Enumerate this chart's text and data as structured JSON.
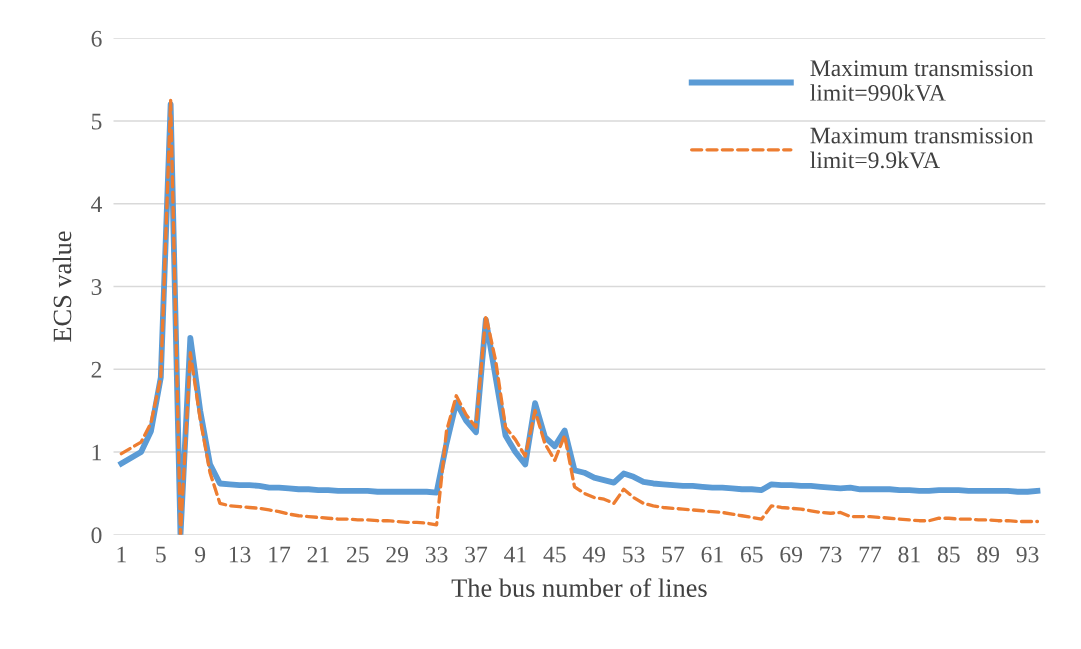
{
  "chart_data": {
    "type": "line",
    "xlabel": "The bus number of lines",
    "ylabel": "ECS value",
    "categories": [
      "1",
      null,
      null,
      null,
      "5",
      null,
      null,
      null,
      "9",
      null,
      null,
      null,
      "13",
      null,
      null,
      null,
      "17",
      null,
      null,
      null,
      "21",
      null,
      null,
      null,
      "25",
      null,
      null,
      null,
      "29",
      null,
      null,
      null,
      "33",
      null,
      null,
      null,
      "37",
      null,
      null,
      null,
      "41",
      null,
      null,
      null,
      "45",
      null,
      null,
      null,
      "49",
      null,
      null,
      null,
      "53",
      null,
      null,
      null,
      "57",
      null,
      null,
      null,
      "61",
      null,
      null,
      null,
      "65",
      null,
      null,
      null,
      "69",
      null,
      null,
      null,
      "73",
      null,
      null,
      null,
      "77",
      null,
      null,
      null,
      "81",
      null,
      null,
      null,
      "85",
      null,
      null,
      null,
      "89",
      null,
      null,
      null,
      "93",
      null
    ],
    "series": [
      {
        "name": "Maximum transmission\nlimit=990kVA",
        "color": "#5b9bd5",
        "line_style": "solid",
        "values": [
          0.86,
          0.93,
          1.0,
          1.25,
          1.9,
          5.2,
          0.0,
          2.38,
          1.5,
          0.85,
          0.62,
          0.61,
          0.6,
          0.6,
          0.59,
          0.57,
          0.57,
          0.56,
          0.55,
          0.55,
          0.54,
          0.54,
          0.53,
          0.53,
          0.53,
          0.53,
          0.52,
          0.52,
          0.52,
          0.52,
          0.52,
          0.52,
          0.51,
          1.1,
          1.6,
          1.38,
          1.24,
          2.6,
          1.9,
          1.2,
          1.0,
          0.85,
          1.59,
          1.18,
          1.07,
          1.26,
          0.78,
          0.75,
          0.69,
          0.66,
          0.63,
          0.74,
          0.7,
          0.64,
          0.62,
          0.61,
          0.6,
          0.59,
          0.59,
          0.58,
          0.57,
          0.57,
          0.56,
          0.55,
          0.55,
          0.54,
          0.61,
          0.6,
          0.6,
          0.59,
          0.59,
          0.58,
          0.57,
          0.56,
          0.57,
          0.55,
          0.55,
          0.55,
          0.55,
          0.54,
          0.54,
          0.53,
          0.53,
          0.54,
          0.54,
          0.54,
          0.53,
          0.53,
          0.53,
          0.53,
          0.53,
          0.52,
          0.52,
          0.53
        ]
      },
      {
        "name": "Maximum transmission\nlimit=9.9kVA",
        "color": "#ed7d31",
        "line_style": "dashed",
        "values": [
          0.98,
          1.05,
          1.12,
          1.35,
          1.9,
          5.25,
          0.0,
          2.2,
          1.4,
          0.75,
          0.38,
          0.35,
          0.34,
          0.33,
          0.32,
          0.3,
          0.28,
          0.25,
          0.23,
          0.22,
          0.21,
          0.2,
          0.19,
          0.19,
          0.18,
          0.18,
          0.17,
          0.17,
          0.16,
          0.15,
          0.15,
          0.14,
          0.12,
          1.25,
          1.68,
          1.45,
          1.3,
          2.65,
          2.1,
          1.3,
          1.15,
          0.95,
          1.5,
          1.1,
          0.9,
          1.2,
          0.58,
          0.5,
          0.45,
          0.43,
          0.38,
          0.55,
          0.45,
          0.38,
          0.35,
          0.33,
          0.32,
          0.31,
          0.3,
          0.29,
          0.28,
          0.27,
          0.25,
          0.23,
          0.21,
          0.19,
          0.35,
          0.33,
          0.32,
          0.31,
          0.29,
          0.27,
          0.26,
          0.27,
          0.22,
          0.22,
          0.22,
          0.21,
          0.2,
          0.19,
          0.18,
          0.17,
          0.17,
          0.2,
          0.2,
          0.19,
          0.19,
          0.18,
          0.18,
          0.17,
          0.17,
          0.16,
          0.16,
          0.16
        ]
      }
    ],
    "ylim": [
      0,
      6
    ],
    "yticks": [
      0,
      1,
      2,
      3,
      4,
      5,
      6
    ],
    "grid": "y",
    "legend": "top right",
    "marker": "none"
  }
}
